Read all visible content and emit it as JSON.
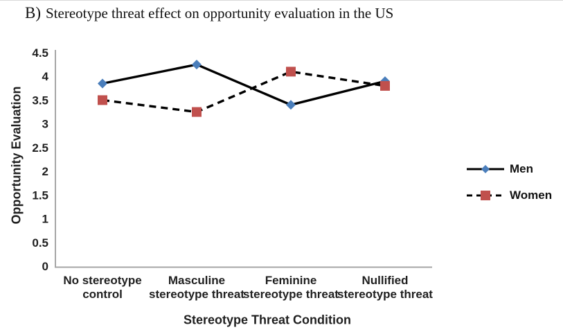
{
  "title": {
    "prefix": "B)",
    "text": "Stereotype threat effect on opportunity evaluation in the US"
  },
  "chart_data": {
    "type": "line",
    "categories": [
      "No stereotype control",
      "Masculine stereotype threat",
      "Feminine stereotype threat",
      "Nullified stereotype threat"
    ],
    "category_label_lines": [
      [
        "No stereotype",
        "control"
      ],
      [
        "Masculine",
        "stereotype threat"
      ],
      [
        "Feminine",
        "stereotype threat"
      ],
      [
        "Nullified",
        "stereotype threat"
      ]
    ],
    "series": [
      {
        "name": "Men",
        "values": [
          3.85,
          4.25,
          3.4,
          3.9
        ],
        "marker": "diamond",
        "marker_color": "#4a7ebb",
        "line_color": "#000000",
        "line_style": "solid"
      },
      {
        "name": "Women",
        "values": [
          3.5,
          3.25,
          4.1,
          3.8
        ],
        "marker": "square",
        "marker_color": "#c0504d",
        "line_color": "#000000",
        "line_style": "dashed"
      }
    ],
    "xlabel": "Stereotype Threat Condition",
    "ylabel": "Opportunity Evaluation",
    "ylim": [
      0,
      4.5
    ],
    "ytick_labels": [
      "0",
      "0.5",
      "1",
      "1.5",
      "2",
      "2.5",
      "3",
      "3.5",
      "4",
      "4.5"
    ],
    "grid": false,
    "legend_position": "right",
    "axis_color": "#a6a6a6",
    "text_color": "#1f1f1f"
  }
}
